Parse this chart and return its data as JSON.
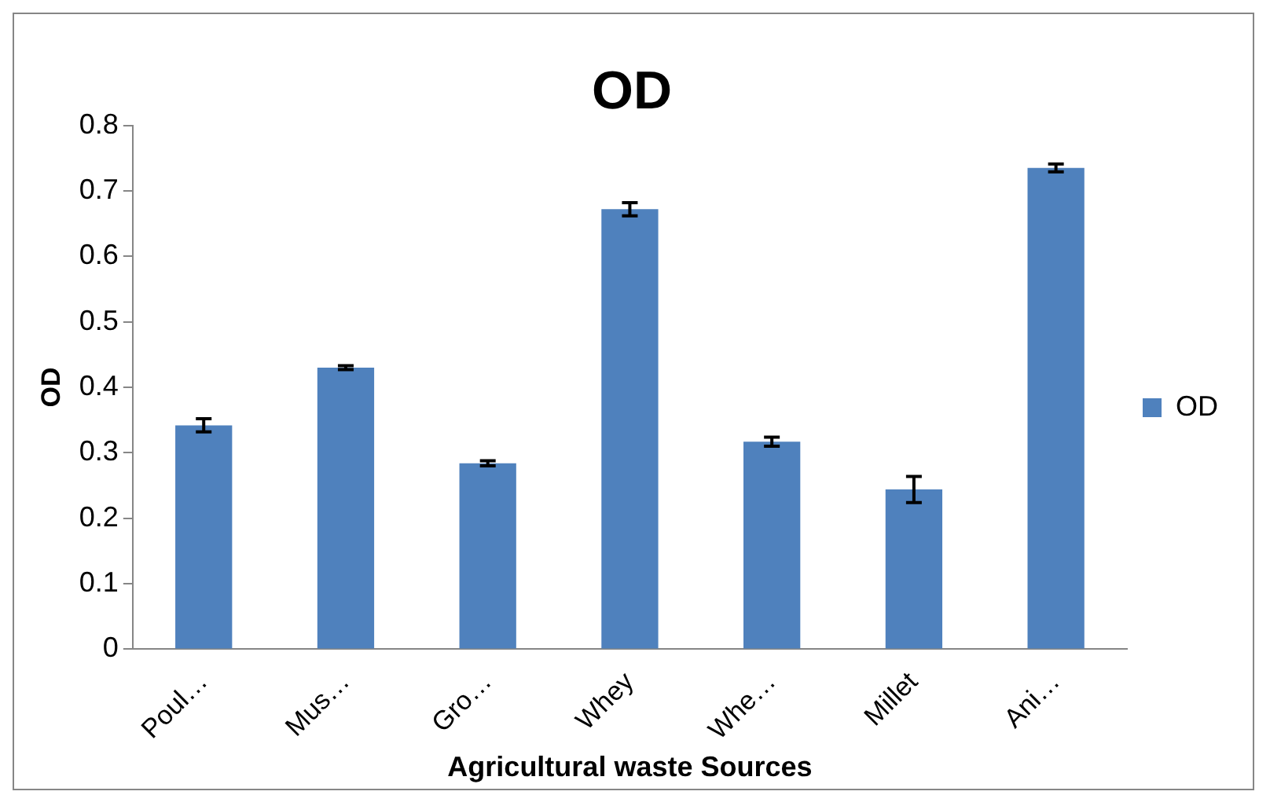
{
  "chart_data": {
    "type": "bar",
    "title": "OD",
    "xlabel": "Agricultural waste Sources",
    "ylabel": "OD",
    "categories": [
      "Poul…",
      "Mus…",
      "Gro…",
      "Whey",
      "Whe…",
      "Millet",
      "Ani…"
    ],
    "series": [
      {
        "name": "OD",
        "color": "#4f81bd",
        "values": [
          0.342,
          0.43,
          0.284,
          0.672,
          0.317,
          0.244,
          0.735
        ],
        "errors": [
          0.01,
          0.003,
          0.004,
          0.01,
          0.007,
          0.02,
          0.006
        ]
      }
    ],
    "ylim": [
      0,
      0.8
    ],
    "yticks": [
      0,
      0.1,
      0.2,
      0.3,
      0.4,
      0.5,
      0.6,
      0.7,
      0.8
    ],
    "grid": false,
    "legend": "right"
  }
}
